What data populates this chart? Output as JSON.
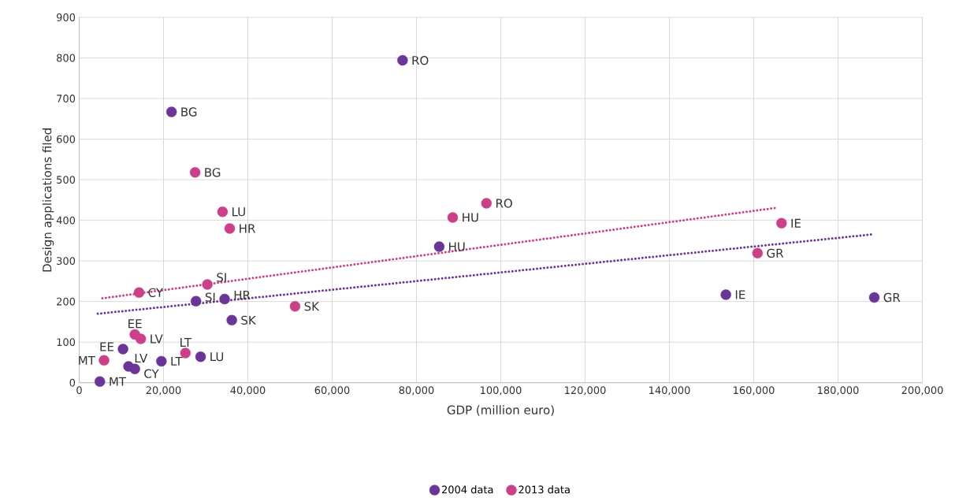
{
  "chart_data": {
    "type": "scatter",
    "xlabel": "GDP (million euro)",
    "ylabel": "Design applications filed",
    "xlim": [
      0,
      200000
    ],
    "ylim": [
      0,
      900
    ],
    "xticks": [
      0,
      {
        "value": 20000,
        "label": "20,000"
      },
      {
        "value": 40000,
        "label": "40,000"
      },
      {
        "value": 60000,
        "label": "60,000"
      },
      {
        "value": 80000,
        "label": "80,000"
      },
      {
        "value": 100000,
        "label": "100,000"
      },
      {
        "value": 120000,
        "label": "120,000"
      },
      {
        "value": 140000,
        "label": "140,000"
      },
      {
        "value": 160000,
        "label": "160,000"
      },
      {
        "value": 180000,
        "label": "180,000"
      },
      {
        "value": 200000,
        "label": "200,000"
      }
    ],
    "yticks": [
      0,
      100,
      200,
      300,
      400,
      500,
      600,
      700,
      800,
      900
    ],
    "grid": true,
    "legend": "bottom",
    "marker": "circle",
    "series": [
      {
        "name": "2004 data",
        "color": "#6a3596",
        "x": [
          76700,
          21900,
          85400,
          153400,
          188600,
          27700,
          34500,
          36200,
          10400,
          11700,
          13200,
          19500,
          28800,
          4900
        ],
        "values": [
          794,
          667,
          335,
          217,
          210,
          201,
          206,
          154,
          83,
          40,
          34,
          53,
          64,
          3
        ]
      },
      {
        "name": "2013 data",
        "color": "#cc4089",
        "x": [
          96600,
          27500,
          34000,
          35700,
          88600,
          166600,
          160900,
          14200,
          30400,
          51200,
          13200,
          14600,
          5900,
          25200
        ],
        "values": [
          442,
          518,
          421,
          380,
          407,
          393,
          319,
          222,
          242,
          188,
          119,
          108,
          55,
          73
        ]
      },
      {
        "type": "line",
        "color": "#6a3596",
        "line_style": "dotted",
        "marker": "none",
        "x": [
          4400,
          188600
        ],
        "values": [
          170,
          366
        ]
      },
      {
        "type": "line",
        "color": "#cc4089",
        "line_style": "dotted",
        "marker": "none",
        "x": [
          5500,
          165400
        ],
        "values": [
          208,
          431
        ]
      }
    ],
    "annotations": [
      {
        "text": "RO",
        "x": 76700,
        "y": 794
      },
      {
        "text": "BG",
        "x": 21900,
        "y": 667
      },
      {
        "text": "HU",
        "x": 85400,
        "y": 335
      },
      {
        "text": "IE",
        "x": 153400,
        "y": 217
      },
      {
        "text": "GR",
        "x": 188600,
        "y": 210
      },
      {
        "text": "SI",
        "x": 27700,
        "y": 201
      },
      {
        "text": "HR",
        "x": 34500,
        "y": 206
      },
      {
        "text": "SK",
        "x": 36200,
        "y": 154
      },
      {
        "text": "EE",
        "x": 10400,
        "y": 83
      },
      {
        "text": "LV",
        "x": 11700,
        "y": 40
      },
      {
        "text": "CY",
        "x": 13200,
        "y": 34
      },
      {
        "text": "LT",
        "x": 19500,
        "y": 53
      },
      {
        "text": "LU",
        "x": 28800,
        "y": 64
      },
      {
        "text": "MT",
        "x": 4900,
        "y": 3
      },
      {
        "text": "RO",
        "x": 96600,
        "y": 442
      },
      {
        "text": "BG",
        "x": 27500,
        "y": 518
      },
      {
        "text": "LU",
        "x": 34000,
        "y": 421
      },
      {
        "text": "HR",
        "x": 35700,
        "y": 380
      },
      {
        "text": "HU",
        "x": 88600,
        "y": 407
      },
      {
        "text": "IE",
        "x": 166600,
        "y": 393
      },
      {
        "text": "GR",
        "x": 160900,
        "y": 319
      },
      {
        "text": "CY",
        "x": 14200,
        "y": 222
      },
      {
        "text": "SI",
        "x": 30400,
        "y": 242
      },
      {
        "text": "SK",
        "x": 51200,
        "y": 188
      },
      {
        "text": "EE",
        "x": 13200,
        "y": 119
      },
      {
        "text": "LV",
        "x": 14600,
        "y": 108
      },
      {
        "text": "MT",
        "x": 5900,
        "y": 55
      },
      {
        "text": "LT",
        "x": 25200,
        "y": 73
      }
    ]
  }
}
